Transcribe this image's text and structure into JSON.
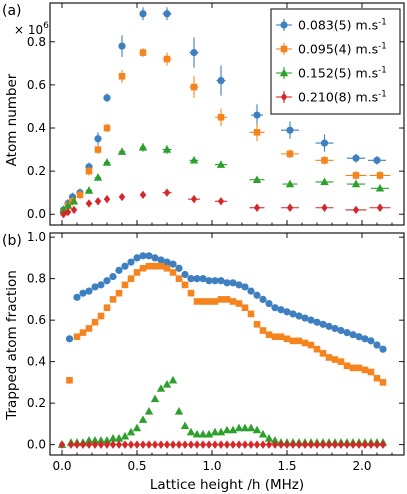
{
  "chart_data": [
    {
      "type": "scatter",
      "panel_label": "(a)",
      "ylabel": "Atom number",
      "scale_label": "× 10",
      "scale_exponent": "6",
      "xlim": [
        -0.08,
        2.28
      ],
      "ylim": [
        -0.05,
        0.98
      ],
      "x_ticks": [
        "0.0",
        "0.5",
        "1.0",
        "1.5",
        "2.0"
      ],
      "y_ticks": [
        "0.0",
        "0.2",
        "0.4",
        "0.6",
        "0.8"
      ],
      "legend_position": "top-right",
      "series": [
        {
          "name": "0.083(5) m.s",
          "sup": "-1",
          "color": "#3e7fbf",
          "marker": "circle",
          "points": [
            [
              0.01,
              0.02,
              0.015,
              0.02
            ],
            [
              0.04,
              0.05,
              0.015,
              0.02
            ],
            [
              0.07,
              0.08,
              0.015,
              0.02
            ],
            [
              0.12,
              0.1,
              0.02,
              0.02
            ],
            [
              0.18,
              0.22,
              0.02,
              0.02
            ],
            [
              0.24,
              0.35,
              0.02,
              0.03
            ],
            [
              0.3,
              0.54,
              0.02,
              0.02
            ],
            [
              0.4,
              0.78,
              0.02,
              0.05
            ],
            [
              0.54,
              0.93,
              0.02,
              0.03
            ],
            [
              0.7,
              0.93,
              0.03,
              0.03
            ],
            [
              0.88,
              0.75,
              0.03,
              0.07
            ],
            [
              1.06,
              0.62,
              0.03,
              0.07
            ],
            [
              1.3,
              0.46,
              0.04,
              0.05
            ],
            [
              1.52,
              0.39,
              0.06,
              0.04
            ],
            [
              1.75,
              0.33,
              0.06,
              0.04
            ],
            [
              1.96,
              0.26,
              0.06,
              0.02
            ],
            [
              2.1,
              0.25,
              0.06,
              0.02
            ]
          ]
        },
        {
          "name": "0.095(4) m.s",
          "sup": "-1",
          "color": "#f5841f",
          "marker": "square",
          "points": [
            [
              0.01,
              0.01,
              0.015,
              0.02
            ],
            [
              0.04,
              0.04,
              0.015,
              0.02
            ],
            [
              0.07,
              0.06,
              0.015,
              0.02
            ],
            [
              0.12,
              0.09,
              0.02,
              0.02
            ],
            [
              0.18,
              0.2,
              0.02,
              0.02
            ],
            [
              0.24,
              0.3,
              0.02,
              0.02
            ],
            [
              0.3,
              0.4,
              0.02,
              0.02
            ],
            [
              0.4,
              0.64,
              0.02,
              0.03
            ],
            [
              0.54,
              0.75,
              0.02,
              0.02
            ],
            [
              0.7,
              0.72,
              0.03,
              0.03
            ],
            [
              0.88,
              0.59,
              0.03,
              0.05
            ],
            [
              1.06,
              0.45,
              0.04,
              0.04
            ],
            [
              1.3,
              0.38,
              0.05,
              0.04
            ],
            [
              1.52,
              0.28,
              0.06,
              0.02
            ],
            [
              1.75,
              0.25,
              0.06,
              0.02
            ],
            [
              1.96,
              0.18,
              0.07,
              0.02
            ],
            [
              2.12,
              0.18,
              0.07,
              0.02
            ]
          ]
        },
        {
          "name": "0.152(5) m.s",
          "sup": "-1",
          "color": "#2ca02c",
          "marker": "triangle",
          "points": [
            [
              0.01,
              0.02,
              0.015,
              0.01
            ],
            [
              0.04,
              0.04,
              0.015,
              0.01
            ],
            [
              0.08,
              0.06,
              0.015,
              0.01
            ],
            [
              0.18,
              0.11,
              0.02,
              0.01
            ],
            [
              0.24,
              0.17,
              0.02,
              0.01
            ],
            [
              0.3,
              0.24,
              0.02,
              0.01
            ],
            [
              0.4,
              0.29,
              0.02,
              0.01
            ],
            [
              0.54,
              0.31,
              0.02,
              0.02
            ],
            [
              0.7,
              0.3,
              0.03,
              0.02
            ],
            [
              0.88,
              0.25,
              0.03,
              0.01
            ],
            [
              1.06,
              0.23,
              0.04,
              0.01
            ],
            [
              1.3,
              0.16,
              0.05,
              0.01
            ],
            [
              1.52,
              0.14,
              0.05,
              0.01
            ],
            [
              1.75,
              0.15,
              0.06,
              0.01
            ],
            [
              1.96,
              0.14,
              0.06,
              0.01
            ],
            [
              2.12,
              0.12,
              0.06,
              0.01
            ]
          ]
        },
        {
          "name": "0.210(8) m.s",
          "sup": "-1",
          "color": "#d62728",
          "marker": "diamond",
          "points": [
            [
              0.01,
              0.0,
              0.015,
              0.01
            ],
            [
              0.04,
              0.01,
              0.015,
              0.01
            ],
            [
              0.08,
              0.02,
              0.015,
              0.01
            ],
            [
              0.18,
              0.05,
              0.02,
              0.01
            ],
            [
              0.24,
              0.06,
              0.02,
              0.01
            ],
            [
              0.3,
              0.07,
              0.02,
              0.01
            ],
            [
              0.4,
              0.08,
              0.02,
              0.01
            ],
            [
              0.54,
              0.09,
              0.02,
              0.01
            ],
            [
              0.7,
              0.1,
              0.03,
              0.01
            ],
            [
              0.88,
              0.07,
              0.04,
              0.01
            ],
            [
              1.06,
              0.06,
              0.04,
              0.01
            ],
            [
              1.3,
              0.03,
              0.05,
              0.01
            ],
            [
              1.52,
              0.03,
              0.06,
              0.01
            ],
            [
              1.75,
              0.03,
              0.06,
              0.01
            ],
            [
              1.96,
              0.02,
              0.07,
              0.01
            ],
            [
              2.12,
              0.03,
              0.07,
              0.01
            ]
          ]
        }
      ]
    },
    {
      "type": "scatter",
      "panel_label": "(b)",
      "ylabel": "Trapped atom fraction",
      "xlabel": "Lattice height /h (MHz)",
      "xlim": [
        -0.08,
        2.28
      ],
      "ylim": [
        -0.05,
        1.02
      ],
      "x_ticks": [
        "0.0",
        "0.5",
        "1.0",
        "1.5",
        "2.0"
      ],
      "y_ticks": [
        "0.0",
        "0.2",
        "0.4",
        "0.6",
        "0.8",
        "1.0"
      ],
      "series": [
        {
          "color": "#3e7fbf",
          "marker": "circle",
          "x": [
            0.05,
            0.1,
            0.14,
            0.18,
            0.22,
            0.26,
            0.3,
            0.34,
            0.38,
            0.42,
            0.46,
            0.5,
            0.54,
            0.58,
            0.62,
            0.66,
            0.7,
            0.74,
            0.78,
            0.82,
            0.86,
            0.9,
            0.94,
            0.98,
            1.02,
            1.06,
            1.1,
            1.14,
            1.18,
            1.22,
            1.26,
            1.3,
            1.34,
            1.38,
            1.42,
            1.46,
            1.5,
            1.54,
            1.58,
            1.62,
            1.66,
            1.7,
            1.74,
            1.78,
            1.82,
            1.86,
            1.9,
            1.94,
            1.98,
            2.02,
            2.06,
            2.1,
            2.14
          ],
          "y": [
            0.51,
            0.71,
            0.73,
            0.74,
            0.76,
            0.77,
            0.79,
            0.81,
            0.84,
            0.86,
            0.88,
            0.9,
            0.91,
            0.91,
            0.9,
            0.89,
            0.88,
            0.87,
            0.85,
            0.82,
            0.8,
            0.8,
            0.8,
            0.79,
            0.79,
            0.79,
            0.78,
            0.78,
            0.77,
            0.76,
            0.74,
            0.72,
            0.7,
            0.68,
            0.66,
            0.65,
            0.64,
            0.63,
            0.62,
            0.61,
            0.6,
            0.59,
            0.58,
            0.57,
            0.56,
            0.55,
            0.54,
            0.53,
            0.52,
            0.51,
            0.5,
            0.48,
            0.46
          ]
        },
        {
          "color": "#f5841f",
          "marker": "square",
          "x": [
            0.05,
            0.1,
            0.14,
            0.18,
            0.22,
            0.26,
            0.3,
            0.34,
            0.38,
            0.42,
            0.46,
            0.5,
            0.54,
            0.58,
            0.62,
            0.66,
            0.7,
            0.74,
            0.78,
            0.82,
            0.86,
            0.9,
            0.94,
            0.98,
            1.02,
            1.06,
            1.1,
            1.14,
            1.18,
            1.22,
            1.26,
            1.3,
            1.34,
            1.38,
            1.42,
            1.46,
            1.5,
            1.54,
            1.58,
            1.62,
            1.66,
            1.7,
            1.74,
            1.78,
            1.82,
            1.86,
            1.9,
            1.94,
            1.98,
            2.02,
            2.06,
            2.1,
            2.14
          ],
          "y": [
            0.31,
            0.52,
            0.54,
            0.56,
            0.59,
            0.62,
            0.66,
            0.7,
            0.73,
            0.77,
            0.8,
            0.83,
            0.85,
            0.86,
            0.86,
            0.86,
            0.85,
            0.83,
            0.8,
            0.77,
            0.73,
            0.69,
            0.69,
            0.69,
            0.69,
            0.7,
            0.7,
            0.69,
            0.68,
            0.66,
            0.63,
            0.58,
            0.55,
            0.53,
            0.52,
            0.52,
            0.51,
            0.5,
            0.5,
            0.49,
            0.48,
            0.46,
            0.44,
            0.42,
            0.41,
            0.4,
            0.38,
            0.37,
            0.37,
            0.36,
            0.35,
            0.32,
            0.3
          ]
        },
        {
          "color": "#2ca02c",
          "marker": "triangle",
          "x": [
            0.0,
            0.06,
            0.1,
            0.14,
            0.18,
            0.22,
            0.26,
            0.3,
            0.34,
            0.38,
            0.42,
            0.46,
            0.5,
            0.54,
            0.58,
            0.62,
            0.66,
            0.7,
            0.74,
            0.78,
            0.82,
            0.86,
            0.9,
            0.94,
            0.98,
            1.02,
            1.06,
            1.1,
            1.14,
            1.18,
            1.22,
            1.26,
            1.3,
            1.34,
            1.38,
            1.42,
            1.46,
            1.5,
            1.54,
            1.58,
            1.62,
            1.66,
            1.7,
            1.74,
            1.78,
            1.82,
            1.86,
            1.9,
            1.94,
            1.98,
            2.02,
            2.06,
            2.1,
            2.14
          ],
          "y": [
            0.0,
            0.01,
            0.01,
            0.01,
            0.02,
            0.02,
            0.02,
            0.02,
            0.03,
            0.03,
            0.04,
            0.06,
            0.08,
            0.12,
            0.16,
            0.22,
            0.27,
            0.29,
            0.31,
            0.16,
            0.09,
            0.06,
            0.05,
            0.05,
            0.05,
            0.06,
            0.06,
            0.07,
            0.07,
            0.08,
            0.08,
            0.08,
            0.07,
            0.05,
            0.03,
            0.02,
            0.01,
            0.01,
            0.01,
            0.01,
            0.01,
            0.01,
            0.01,
            0.01,
            0.01,
            0.01,
            0.01,
            0.01,
            0.01,
            0.01,
            0.01,
            0.01,
            0.01,
            0.01
          ]
        },
        {
          "color": "#d62728",
          "marker": "diamond",
          "x": [
            0.0,
            0.06,
            0.1,
            0.14,
            0.18,
            0.22,
            0.26,
            0.3,
            0.34,
            0.38,
            0.42,
            0.46,
            0.5,
            0.54,
            0.58,
            0.62,
            0.66,
            0.7,
            0.74,
            0.78,
            0.82,
            0.86,
            0.9,
            0.94,
            0.98,
            1.02,
            1.06,
            1.1,
            1.14,
            1.18,
            1.22,
            1.26,
            1.3,
            1.34,
            1.38,
            1.42,
            1.46,
            1.5,
            1.54,
            1.58,
            1.62,
            1.66,
            1.7,
            1.74,
            1.78,
            1.82,
            1.86,
            1.9,
            1.94,
            1.98,
            2.02,
            2.06,
            2.1,
            2.14
          ],
          "y": [
            0.0,
            0.0,
            0.0,
            0.0,
            0.0,
            0.0,
            0.0,
            0.0,
            0.0,
            0.0,
            0.0,
            0.0,
            0.0,
            0.0,
            0.0,
            0.0,
            0.0,
            0.0,
            0.0,
            0.0,
            0.0,
            0.0,
            0.0,
            0.0,
            0.0,
            0.0,
            0.0,
            0.0,
            0.0,
            0.0,
            0.0,
            0.0,
            0.0,
            0.0,
            0.0,
            0.0,
            0.0,
            0.0,
            0.0,
            0.0,
            0.0,
            0.0,
            0.0,
            0.0,
            0.0,
            0.0,
            0.0,
            0.0,
            0.0,
            0.0,
            0.0,
            0.0,
            0.0,
            0.0
          ]
        }
      ]
    }
  ]
}
